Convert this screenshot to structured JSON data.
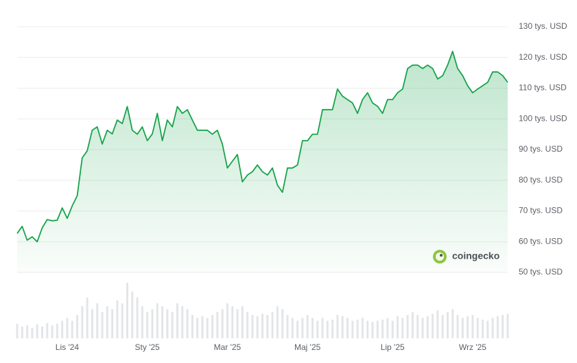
{
  "chart_data": {
    "type": "line",
    "color": "#16a34a",
    "watermark": "coingecko",
    "categories": [
      null,
      null,
      null,
      null,
      null,
      null,
      null,
      null,
      null,
      null,
      "Lis '24",
      null,
      null,
      null,
      null,
      null,
      null,
      null,
      null,
      null,
      null,
      null,
      null,
      null,
      null,
      null,
      "Sty '25",
      null,
      null,
      null,
      null,
      null,
      null,
      null,
      null,
      null,
      null,
      null,
      null,
      null,
      null,
      null,
      "Mar '25",
      null,
      null,
      null,
      null,
      null,
      null,
      null,
      null,
      null,
      null,
      null,
      null,
      null,
      null,
      null,
      "Maj '25",
      null,
      null,
      null,
      null,
      null,
      null,
      null,
      null,
      null,
      null,
      null,
      null,
      null,
      null,
      null,
      null,
      "Lip '25",
      null,
      null,
      null,
      null,
      null,
      null,
      null,
      null,
      null,
      null,
      null,
      null,
      null,
      null,
      null,
      "Wrz '25",
      null,
      null,
      null,
      null,
      null,
      null,
      null
    ],
    "values": [
      62.7,
      65,
      60.5,
      61.6,
      60,
      64.5,
      67.2,
      66.8,
      67,
      71,
      67.6,
      71.7,
      75,
      87.3,
      89.6,
      96.3,
      97.4,
      91.8,
      96.3,
      95.1,
      99.6,
      98.5,
      104,
      96.3,
      95,
      97.4,
      92.9,
      95.1,
      101.8,
      92.9,
      99.6,
      97.4,
      104,
      101.8,
      103,
      99.6,
      96.3,
      96.3,
      96.3,
      95,
      96.3,
      91.8,
      84,
      86.2,
      88.4,
      79.5,
      81.7,
      82.8,
      85,
      82.8,
      81.7,
      84,
      78.4,
      76.1,
      84,
      84,
      85,
      92.9,
      92.9,
      95,
      95,
      103,
      103,
      103,
      109.7,
      107.4,
      106.3,
      105.2,
      101.8,
      106.3,
      108.5,
      105.2,
      104.1,
      101.8,
      106.3,
      106.3,
      108.5,
      109.7,
      116.4,
      117.5,
      117.5,
      116.4,
      117.5,
      116.4,
      113,
      114.1,
      117.5,
      122,
      116.4,
      114.1,
      110.8,
      108.5,
      109.7,
      110.8,
      111.9,
      115.3,
      115.3,
      114.1,
      111.9
    ],
    "ylim": [
      50,
      130
    ],
    "yticks": [
      {
        "value": 50,
        "label": "50 tys. USD"
      },
      {
        "value": 60,
        "label": "60 tys. USD"
      },
      {
        "value": 70,
        "label": "70 tys. USD"
      },
      {
        "value": 80,
        "label": "80 tys. USD"
      },
      {
        "value": 90,
        "label": "90 tys. USD"
      },
      {
        "value": 100,
        "label": "100 tys. USD"
      },
      {
        "value": 110,
        "label": "110 tys. USD"
      },
      {
        "value": 120,
        "label": "120 tys. USD"
      },
      {
        "value": 130,
        "label": "130 tys. USD"
      }
    ],
    "grid": true,
    "volume": {
      "color": "#e3e5e8",
      "ylim": [
        0,
        100
      ],
      "values": [
        25,
        20,
        22,
        18,
        24,
        20,
        26,
        22,
        25,
        30,
        35,
        30,
        40,
        55,
        70,
        50,
        60,
        45,
        55,
        50,
        65,
        60,
        95,
        80,
        70,
        55,
        45,
        50,
        60,
        55,
        50,
        45,
        60,
        55,
        50,
        40,
        35,
        38,
        35,
        40,
        45,
        50,
        60,
        55,
        50,
        55,
        45,
        40,
        38,
        42,
        40,
        45,
        55,
        50,
        40,
        35,
        30,
        35,
        40,
        35,
        30,
        35,
        30,
        32,
        40,
        38,
        35,
        30,
        32,
        35,
        30,
        28,
        30,
        32,
        35,
        30,
        38,
        35,
        40,
        45,
        40,
        35,
        38,
        42,
        48,
        40,
        45,
        50,
        40,
        35,
        38,
        40,
        35,
        32,
        30,
        35,
        38,
        40,
        42
      ]
    }
  }
}
